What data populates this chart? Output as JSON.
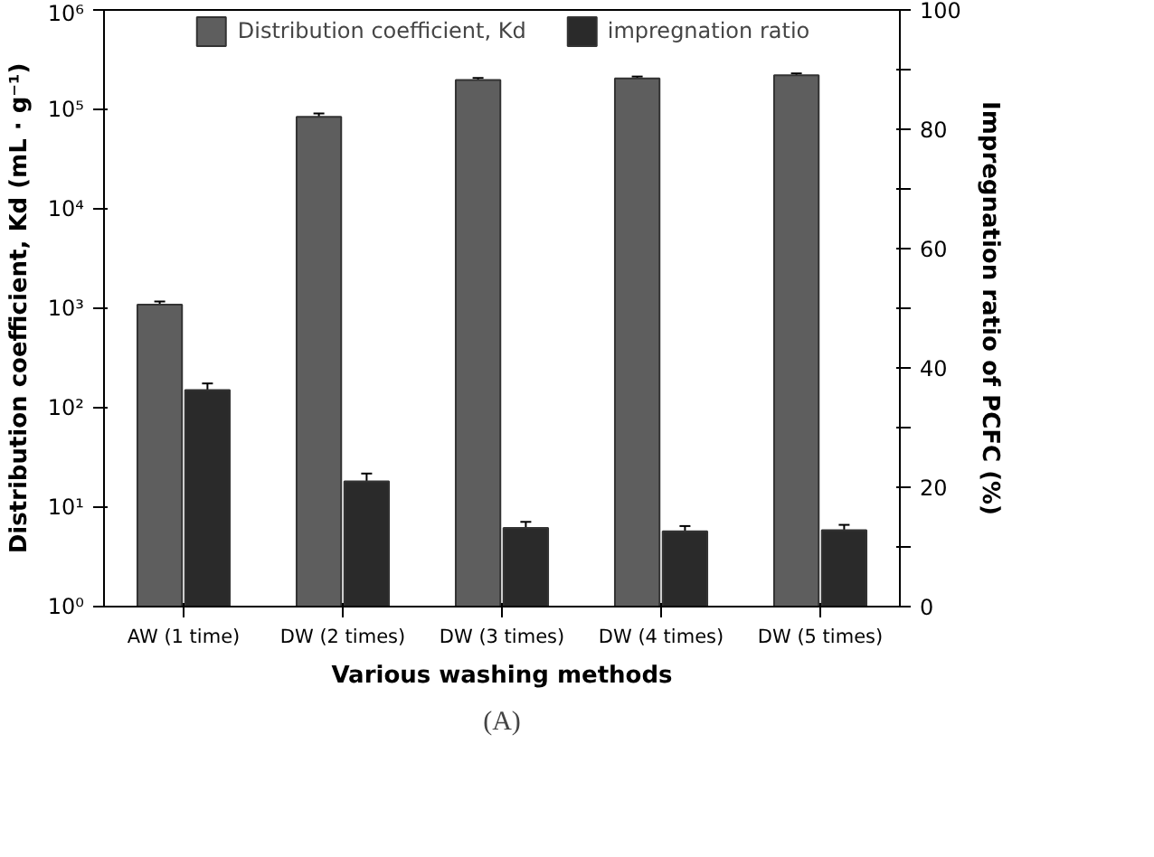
{
  "chart_data": {
    "type": "bar",
    "xlabel": "Various washing methods",
    "ylabel": "Distribution coefficient, Kd (mL · g⁻¹)",
    "y2label": "Impregnation ratio of PCFC (%)",
    "categories": [
      "AW (1 time)",
      "DW (2 times)",
      "DW (3 times)",
      "DW (4 times)",
      "DW (5 times)"
    ],
    "series": [
      {
        "name": "Distribution coefficient, Kd",
        "color": "#5e5e5e",
        "values": [
          1090,
          84000,
          197000,
          205000,
          220000
        ],
        "errors": [
          80,
          7000,
          10000,
          9000,
          10000
        ]
      },
      {
        "name": "impregnation ratio",
        "color": "#2a2a2a",
        "axis": "y2",
        "values": [
          36.3,
          21.0,
          13.2,
          12.6,
          12.8
        ],
        "errors": [
          1.1,
          1.3,
          1.0,
          0.9,
          0.9
        ]
      }
    ],
    "log": "y",
    "ylim": [
      1,
      1000000
    ],
    "yticks": [
      {
        "value": 1,
        "label": "10⁰"
      },
      {
        "value": 10,
        "label": "10¹"
      },
      {
        "value": 100,
        "label": "10²"
      },
      {
        "value": 1000,
        "label": "10³"
      },
      {
        "value": 10000,
        "label": "10⁴"
      },
      {
        "value": 100000,
        "label": "10⁵"
      },
      {
        "value": 1000000,
        "label": "10⁶"
      }
    ],
    "y2lim": [
      0,
      100
    ],
    "y2ticks": [
      0,
      {
        "value": 10,
        "label": null
      },
      20,
      {
        "value": 30,
        "label": null
      },
      40,
      {
        "value": 50,
        "label": null
      },
      60,
      {
        "value": 70,
        "label": null
      },
      80,
      {
        "value": 90,
        "label": null
      },
      100
    ],
    "grid": false,
    "legend": "top",
    "annotations": [
      "(A)"
    ]
  }
}
